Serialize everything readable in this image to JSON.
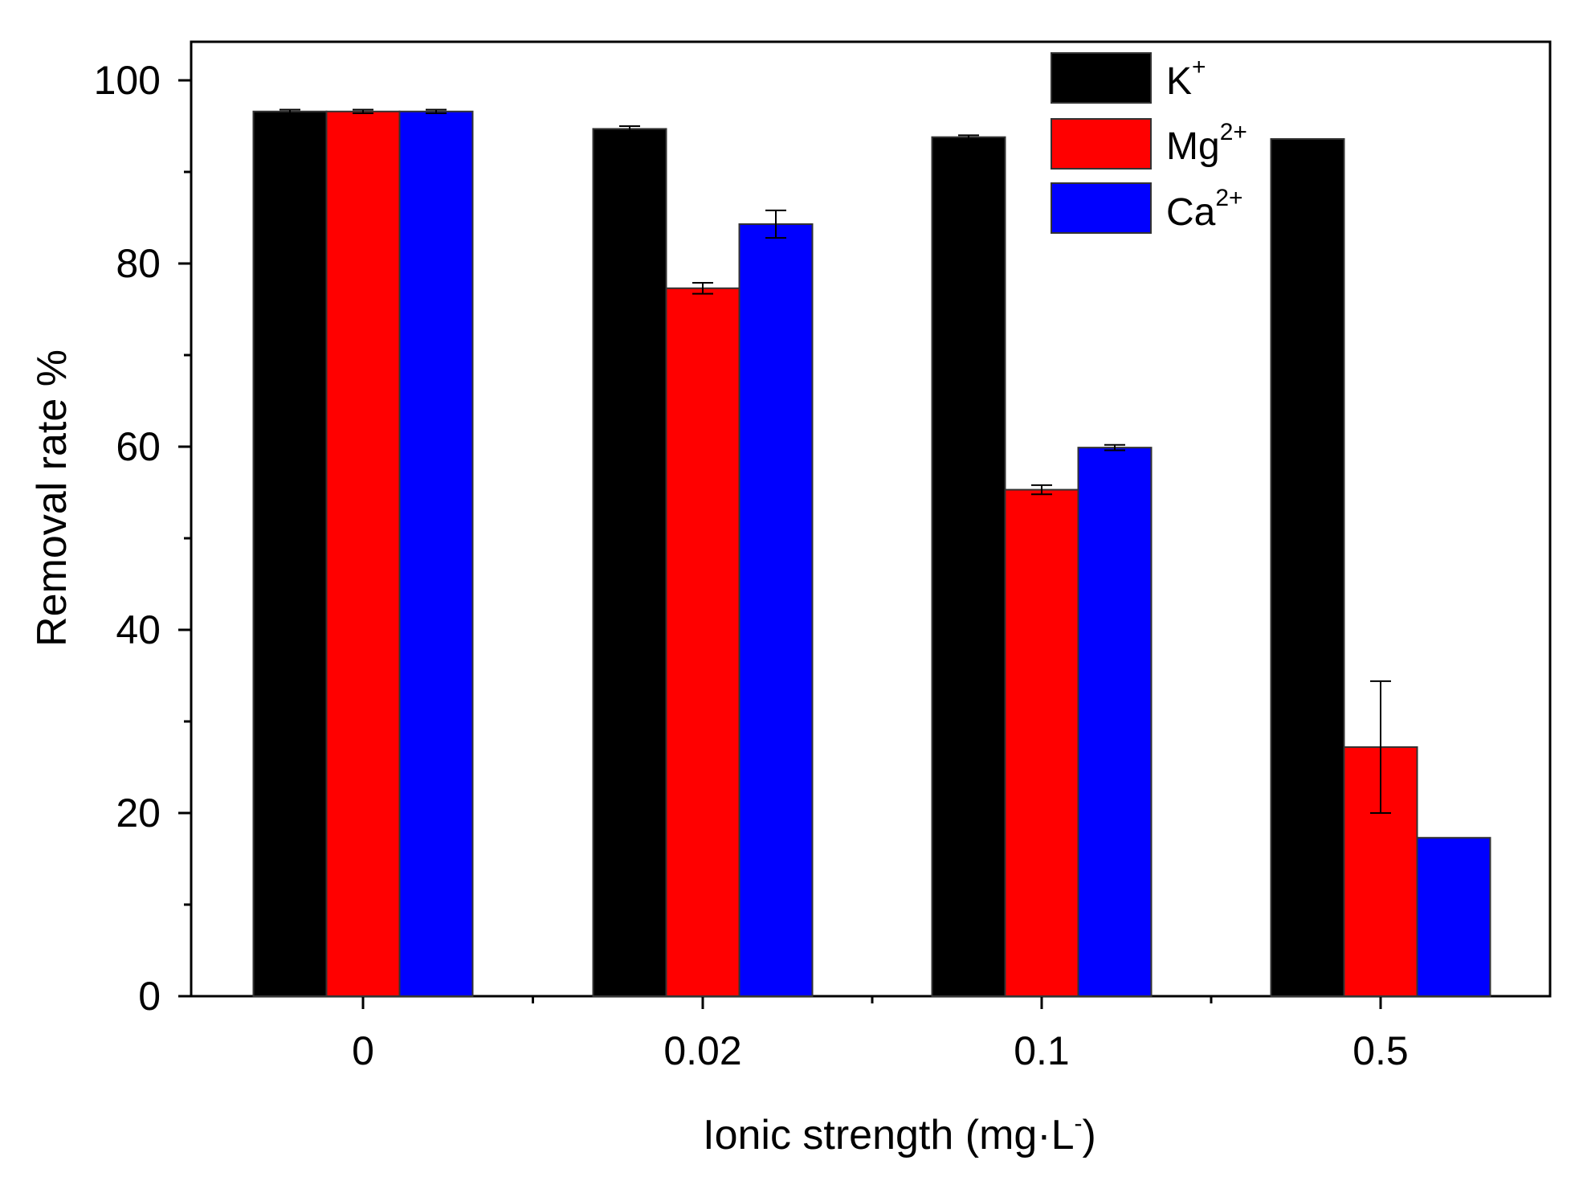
{
  "chart_data": {
    "type": "bar",
    "title": "",
    "xlabel": "Ionic strength (mg·L",
    "xlabel_sup": "-",
    "ylabel": "Removal rate %",
    "ylim": [
      0,
      100
    ],
    "yticks": [
      0,
      20,
      40,
      60,
      80,
      100
    ],
    "categories": [
      "0",
      "0.02",
      "0.1",
      "0.5"
    ],
    "series": [
      {
        "name": "K",
        "sup": "+",
        "color": "#000000",
        "values": [
          96.6,
          94.7,
          93.8,
          93.6
        ],
        "errors": [
          0.2,
          0.3,
          0.2,
          0.0
        ]
      },
      {
        "name": "Mg",
        "sup": "2+",
        "color": "#ff0000",
        "values": [
          96.6,
          77.3,
          55.3,
          27.2
        ],
        "errors": [
          0.2,
          0.6,
          0.5,
          7.2
        ]
      },
      {
        "name": "Ca",
        "sup": "2+",
        "color": "#0000ff",
        "values": [
          96.6,
          84.3,
          59.9,
          17.3
        ],
        "errors": [
          0.2,
          1.5,
          0.3,
          0.0
        ]
      }
    ],
    "legend_position": "top-right",
    "grid": false
  }
}
